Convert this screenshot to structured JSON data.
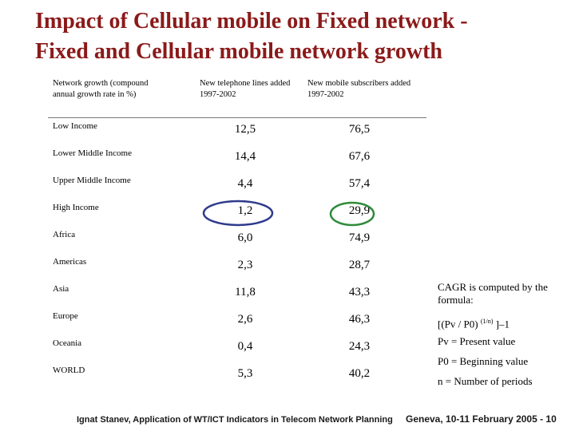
{
  "title": {
    "line1": "Impact of Cellular mobile on Fixed network -",
    "line2": "Fixed and Cellular mobile network growth"
  },
  "table": {
    "headers": [
      "Network growth (compound annual growth rate in %)",
      "New telephone lines added 1997-2002",
      "New mobile subscribers added 1997-2002"
    ],
    "rows": [
      {
        "label": "Low Income",
        "lines": "12,5",
        "mobile": "76,5"
      },
      {
        "label": "Lower Middle Income",
        "lines": "14,4",
        "mobile": "67,6"
      },
      {
        "label": "Upper Middle Income",
        "lines": "4,4",
        "mobile": "57,4"
      },
      {
        "label": "High Income",
        "lines": "1,2",
        "mobile": "29,9"
      },
      {
        "label": "Africa",
        "lines": "6,0",
        "mobile": "74,9"
      },
      {
        "label": "Americas",
        "lines": "2,3",
        "mobile": "28,7"
      },
      {
        "label": "Asia",
        "lines": "11,8",
        "mobile": "43,3"
      },
      {
        "label": "Europe",
        "lines": "2,6",
        "mobile": "46,3"
      },
      {
        "label": "Oceania",
        "lines": "0,4",
        "mobile": "24,3"
      },
      {
        "label": "WORLD",
        "lines": "5,3",
        "mobile": "40,2"
      }
    ]
  },
  "formula": {
    "intro": "CAGR is computed by the formula:",
    "eq_start": "[(Pv / P0)",
    "eq_exp": "(1/n)",
    "eq_end": "]–1",
    "pv": "Pv = Present value",
    "p0": "P0 = Beginning value",
    "n": "n = Number of periods"
  },
  "footer": {
    "left": "Ignat Stanev, Application of WT/ICT Indicators in Telecom Network Planning",
    "right": "Geneva, 10-11 February 2005 - 10"
  },
  "colors": {
    "title": "#8b1a1a",
    "oval_blue": "#2e3a8c",
    "oval_green": "#2e8b3a"
  }
}
